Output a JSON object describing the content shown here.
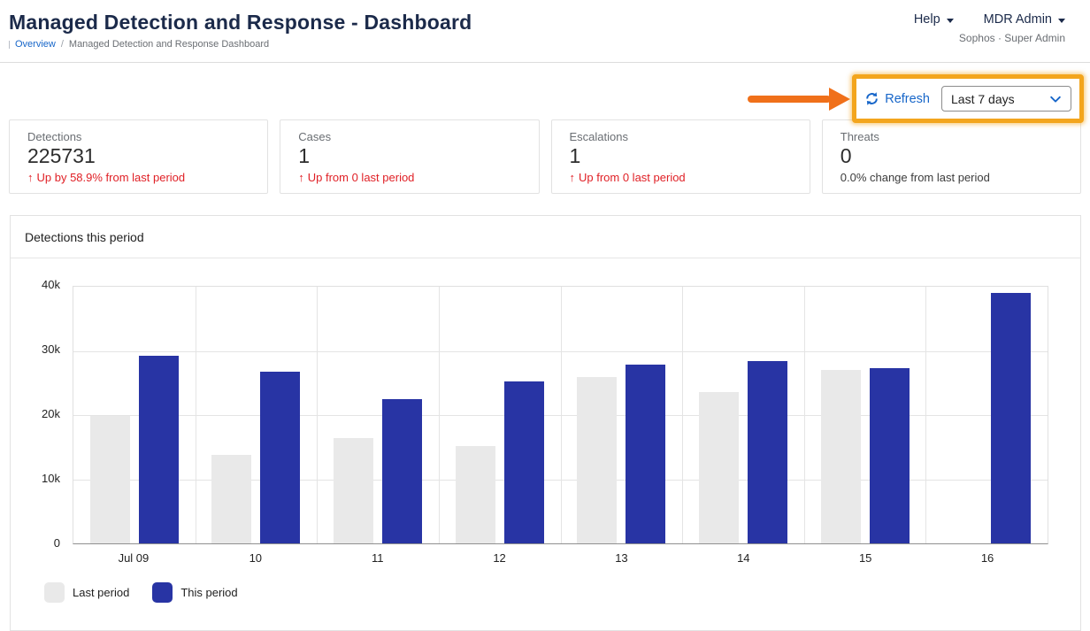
{
  "header": {
    "title": "Managed Detection and Response - Dashboard",
    "breadcrumb": {
      "overview": "Overview",
      "separator": "/",
      "current": "Managed Detection and Response Dashboard"
    },
    "help_label": "Help",
    "account_label": "MDR Admin",
    "account_subtitle": "Sophos · Super Admin"
  },
  "toolbar": {
    "refresh_label": "Refresh",
    "period_value": "Last 7 days"
  },
  "stat_cards": [
    {
      "label": "Detections",
      "value": "225731",
      "arrow": "↑",
      "delta": "Up by 58.9% from last period"
    },
    {
      "label": "Cases",
      "value": "1",
      "arrow": "↑",
      "delta": "Up from 0 last period"
    },
    {
      "label": "Escalations",
      "value": "1",
      "arrow": "↑",
      "delta": "Up from 0 last period"
    },
    {
      "label": "Threats",
      "value": "0",
      "arrow": "",
      "delta": "0.0% change from last period"
    }
  ],
  "chart_panel": {
    "title": "Detections this period"
  },
  "chart_data": {
    "type": "bar",
    "title": "Detections this period",
    "categories": [
      "Jul 09",
      "10",
      "11",
      "12",
      "13",
      "14",
      "15",
      "16"
    ],
    "series": [
      {
        "name": "Last period",
        "color": "#e9e9e9",
        "values": [
          19900,
          13800,
          16400,
          15200,
          25900,
          23600,
          27000,
          0
        ]
      },
      {
        "name": "This period",
        "color": "#2834a4",
        "values": [
          29300,
          26700,
          22500,
          25200,
          27800,
          28400,
          27300,
          39000
        ]
      }
    ],
    "ylim": [
      0,
      40000
    ],
    "ytick_labels": [
      "40k",
      "30k",
      "20k",
      "10k",
      "0"
    ],
    "xlabel": "",
    "ylabel": "",
    "grid": true,
    "legend_position": "bottom-left"
  },
  "annotation": {
    "arrow_color": "#f0701a",
    "box_border_color": "#f3a51d"
  },
  "colors": {
    "accent_blue": "#1766c9",
    "navy": "#1b2a4a",
    "alert_red": "#e02026"
  }
}
